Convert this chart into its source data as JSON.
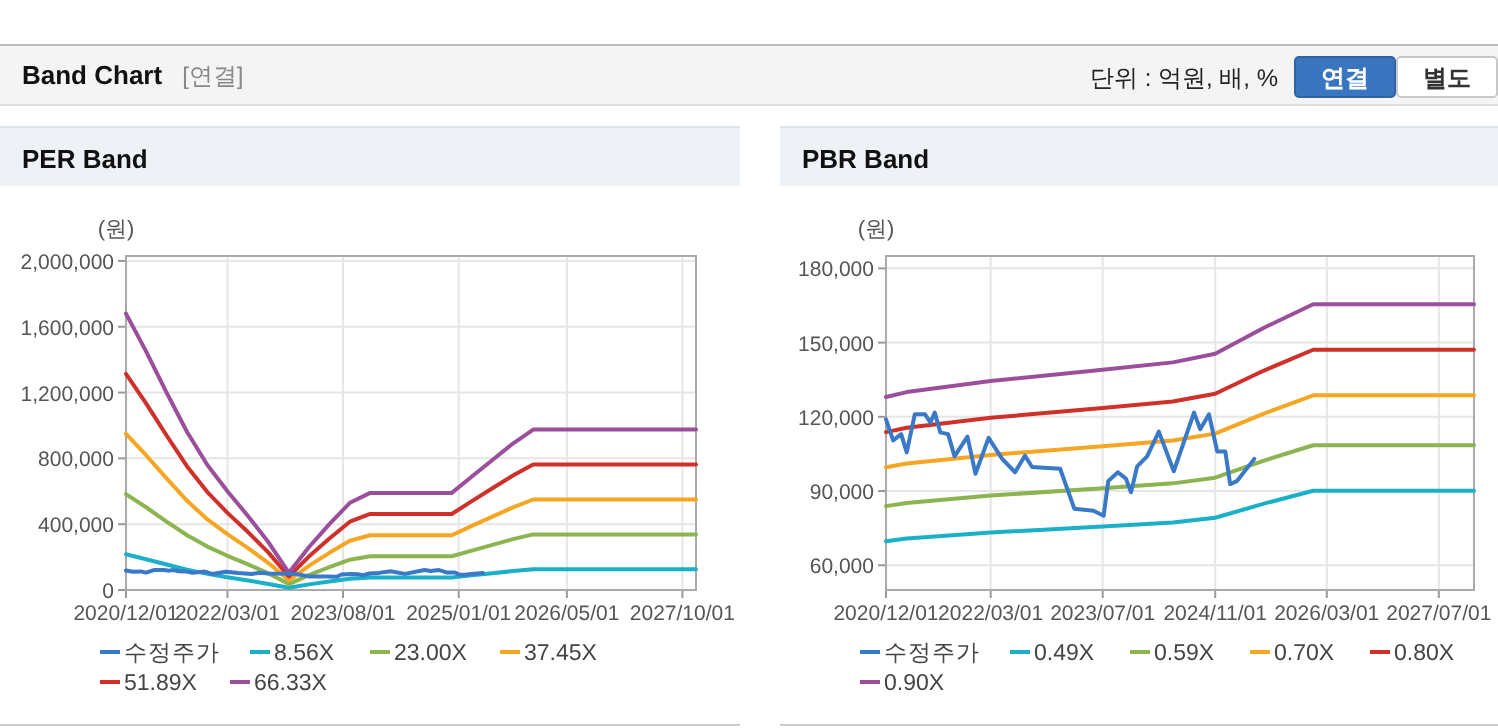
{
  "chart_data": [
    {
      "type": "other",
      "title": "Band Chart",
      "subtitle": "[연결]",
      "annotations": [
        "단위 : 억원, 배, %",
        "연결",
        "별도"
      ]
    },
    {
      "type": "line",
      "title": "PER Band",
      "ylabel": "(원)",
      "grid": true,
      "legend": "bottom",
      "marker": "none",
      "line_style": "solid",
      "xlim": [
        "2020-12-01",
        "2027-12-01"
      ],
      "xticks": [
        {
          "value": "2020-12-01",
          "label": "2020/12/01"
        },
        {
          "value": "2022-03-01",
          "label": "2022/03/01"
        },
        {
          "value": "2023-08-01",
          "label": "2023/08/01"
        },
        {
          "value": "2025-01-01",
          "label": "2025/01/01"
        },
        {
          "value": "2026-05-01",
          "label": "2026/05/01"
        },
        {
          "value": "2027-10-01",
          "label": "2027/10/01"
        }
      ],
      "ylim": [
        0,
        2030000
      ],
      "yticks": [
        0,
        {
          "value": 400000,
          "label": "400,000"
        },
        {
          "value": 800000,
          "label": "800,000"
        },
        {
          "value": 1200000,
          "label": "1,200,000"
        },
        {
          "value": 1600000,
          "label": "1,600,000"
        },
        {
          "value": 2000000,
          "label": "2,000,000"
        }
      ],
      "x": [
        "2020-12-01",
        "2021-03-01",
        "2021-06-01",
        "2021-09-01",
        "2021-12-01",
        "2022-03-01",
        "2022-06-01",
        "2022-09-01",
        "2022-12-01",
        "2023-03-01",
        "2023-06-01",
        "2023-09-01",
        "2023-12-01",
        "2024-03-01",
        "2024-06-01",
        "2024-09-01",
        "2024-12-01",
        "2025-03-01",
        "2025-06-01",
        "2025-09-01",
        "2025-12-01",
        "2027-12-01"
      ],
      "series": [
        {
          "name": "수정주가",
          "color": "#3a78c8",
          "x": [
            "2020-12-01",
            "2021-01-01",
            "2021-02-05",
            "2021-03-01",
            "2021-04-05",
            "2021-05-20",
            "2021-06-12",
            "2021-07-01",
            "2021-07-25",
            "2021-08-28",
            "2021-09-25",
            "2021-11-20",
            "2021-12-25",
            "2022-02-20",
            "2022-04-20",
            "2022-06-15",
            "2022-07-28",
            "2022-08-28",
            "2022-12-28",
            "2023-02-28",
            "2023-05-22",
            "2023-07-05",
            "2023-07-25",
            "2023-09-05",
            "2023-10-10",
            "2023-11-01",
            "2023-11-28",
            "2024-01-10",
            "2024-03-01",
            "2024-05-05",
            "2024-08-01",
            "2024-08-28",
            "2024-10-05",
            "2024-11-10",
            "2024-12-15",
            "2025-01-05",
            "2025-02-03",
            "2025-04-20"
          ],
          "values": [
            119000,
            110500,
            113000,
            105600,
            121000,
            121000,
            117700,
            121700,
            113700,
            113000,
            104000,
            112000,
            97000,
            111500,
            103000,
            97600,
            104300,
            99700,
            99000,
            82800,
            82000,
            80000,
            94000,
            97600,
            95000,
            89500,
            100000,
            104000,
            114000,
            98000,
            121700,
            115000,
            121000,
            106000,
            106000,
            92800,
            94000,
            103000
          ]
        },
        {
          "name": "8.56X",
          "color": "#1ab0c8",
          "values": [
            217000,
            187000,
            155000,
            124000,
            98000,
            77000,
            58000,
            37000,
            14000,
            34000,
            52000,
            68000,
            76000,
            76000,
            76000,
            76000,
            76000,
            89000,
            102000,
            115000,
            126000,
            126000
          ]
        },
        {
          "name": "23.00X",
          "color": "#8cb450",
          "values": [
            583000,
            503000,
            416000,
            333000,
            264000,
            208000,
            156000,
            101000,
            36000,
            90000,
            139000,
            184000,
            205000,
            205000,
            205000,
            205000,
            205000,
            239000,
            274000,
            309000,
            338000,
            338000
          ]
        },
        {
          "name": "37.45X",
          "color": "#f5a623",
          "values": [
            949000,
            819000,
            678000,
            542000,
            429000,
            339000,
            254000,
            164000,
            59000,
            147000,
            226000,
            299000,
            333000,
            333000,
            333000,
            333000,
            333000,
            390000,
            446000,
            502000,
            550000,
            550000
          ]
        },
        {
          "name": "51.89X",
          "color": "#d0302a",
          "values": [
            1314000,
            1134000,
            939000,
            751000,
            595000,
            469000,
            352000,
            227000,
            82000,
            203000,
            313000,
            415000,
            462000,
            462000,
            462000,
            462000,
            462000,
            540000,
            618000,
            696000,
            763000,
            763000
          ]
        },
        {
          "name": "66.33X",
          "color": "#9b4f9b",
          "values": [
            1680000,
            1450000,
            1200000,
            960000,
            760000,
            600000,
            450000,
            290000,
            105000,
            260000,
            400000,
            530000,
            590000,
            590000,
            590000,
            590000,
            590000,
            690000,
            790000,
            890000,
            975000,
            975000
          ]
        }
      ]
    },
    {
      "type": "line",
      "title": "PBR Band",
      "ylabel": "(원)",
      "grid": true,
      "legend": "bottom",
      "marker": "none",
      "line_style": "solid",
      "xlim": [
        "2020-12-01",
        "2027-12-01"
      ],
      "xticks": [
        {
          "value": "2020-12-01",
          "label": "2020/12/01"
        },
        {
          "value": "2022-03-01",
          "label": "2022/03/01"
        },
        {
          "value": "2023-07-01",
          "label": "2023/07/01"
        },
        {
          "value": "2024-11-01",
          "label": "2024/11/01"
        },
        {
          "value": "2026-03-01",
          "label": "2026/03/01"
        },
        {
          "value": "2027-07-01",
          "label": "2027/07/01"
        }
      ],
      "ylim": [
        50000,
        185000
      ],
      "yticks": [
        {
          "value": 60000,
          "label": "60,000"
        },
        {
          "value": 90000,
          "label": "90,000"
        },
        {
          "value": 120000,
          "label": "120,000"
        },
        {
          "value": 150000,
          "label": "150,000"
        },
        {
          "value": 180000,
          "label": "180,000"
        }
      ],
      "x": [
        "2020-12-01",
        "2021-03-01",
        "2022-03-01",
        "2023-07-01",
        "2024-05-01",
        "2024-11-01",
        "2025-06-01",
        "2026-01-01",
        "2027-12-01"
      ],
      "series": [
        {
          "name": "수정주가",
          "color": "#3a78c8",
          "x": [
            "2020-12-01",
            "2021-01-01",
            "2021-02-05",
            "2021-03-01",
            "2021-04-05",
            "2021-05-20",
            "2021-06-12",
            "2021-07-01",
            "2021-07-25",
            "2021-08-28",
            "2021-09-25",
            "2021-11-20",
            "2021-12-25",
            "2022-02-20",
            "2022-04-20",
            "2022-06-15",
            "2022-07-28",
            "2022-08-28",
            "2022-12-28",
            "2023-02-28",
            "2023-05-22",
            "2023-07-05",
            "2023-07-25",
            "2023-09-05",
            "2023-10-10",
            "2023-11-01",
            "2023-11-28",
            "2024-01-10",
            "2024-03-01",
            "2024-05-05",
            "2024-08-01",
            "2024-08-28",
            "2024-10-05",
            "2024-11-10",
            "2024-12-15",
            "2025-01-05",
            "2025-02-03",
            "2025-04-20"
          ],
          "values": [
            119000,
            110500,
            113000,
            105600,
            121000,
            121000,
            117700,
            121700,
            113700,
            113000,
            104000,
            112000,
            97000,
            111500,
            103000,
            97600,
            104300,
            99700,
            99000,
            82800,
            82000,
            80000,
            94000,
            97600,
            95000,
            89500,
            100000,
            104000,
            114000,
            98000,
            121700,
            115000,
            121000,
            106000,
            106000,
            92800,
            94000,
            103000
          ]
        },
        {
          "name": "0.49X",
          "color": "#1ab0c8",
          "values": [
            69700,
            70800,
            73200,
            75700,
            77300,
            79200,
            84900,
            90100,
            90100
          ]
        },
        {
          "name": "0.59X",
          "color": "#8cb450",
          "values": [
            83900,
            85200,
            88200,
            91100,
            93100,
            95400,
            102300,
            108500,
            108500
          ]
        },
        {
          "name": "0.70X",
          "color": "#f5a623",
          "values": [
            99600,
            101100,
            104600,
            108100,
            110400,
            113200,
            121300,
            128700,
            128700
          ]
        },
        {
          "name": "0.80X",
          "color": "#d0302a",
          "values": [
            113800,
            115600,
            119600,
            123600,
            126200,
            129300,
            138700,
            147100,
            147100
          ]
        },
        {
          "name": "0.90X",
          "color": "#9b4f9b",
          "values": [
            128000,
            130000,
            134500,
            139000,
            142000,
            145500,
            156000,
            165500,
            165500
          ]
        }
      ]
    }
  ]
}
